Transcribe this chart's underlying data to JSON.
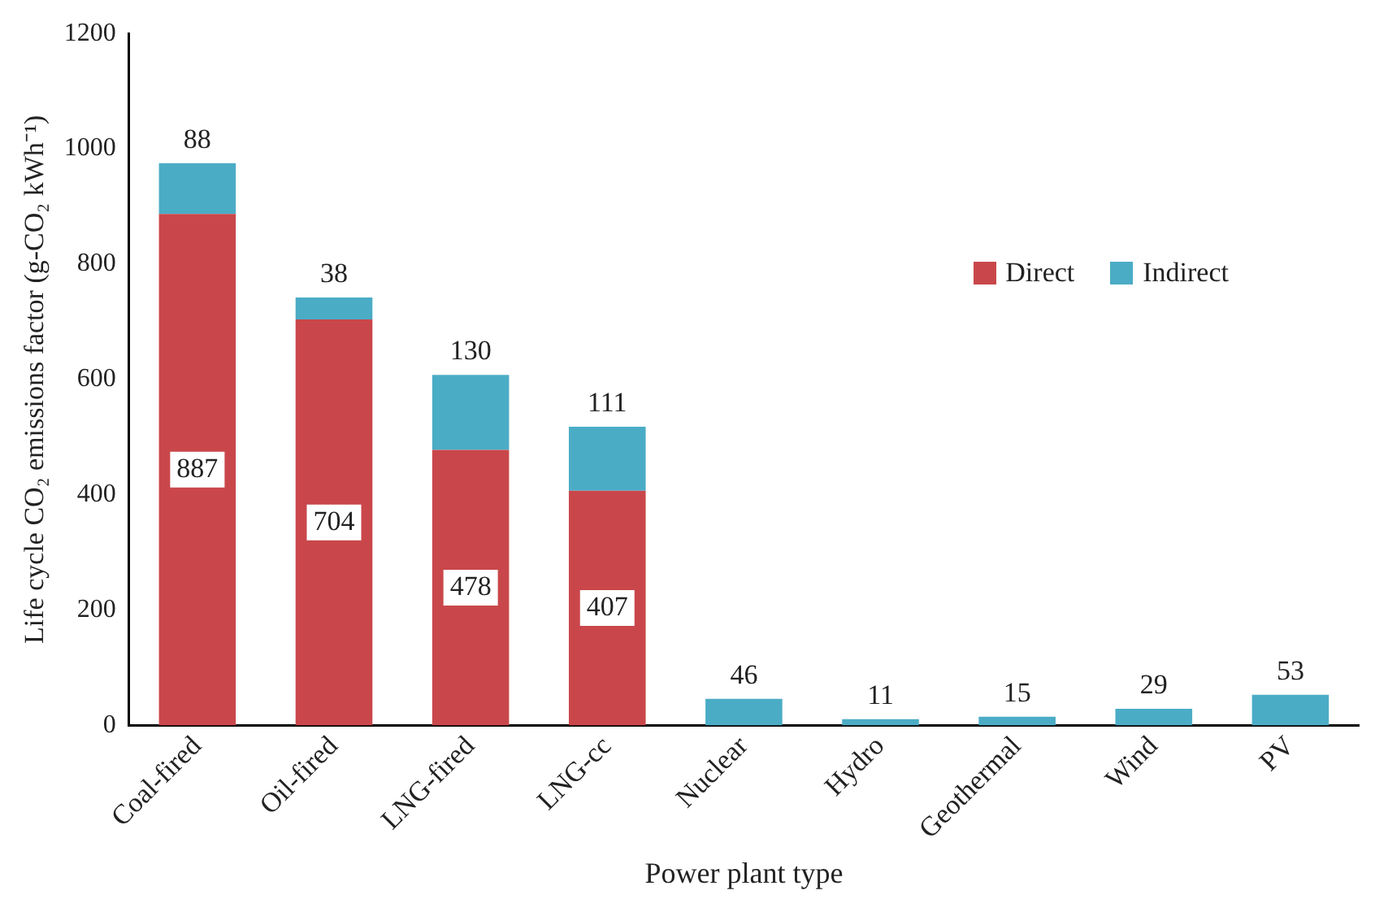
{
  "chart_data": {
    "type": "bar",
    "stacked": true,
    "xlabel": "Power plant type",
    "ylabel": "Life cycle CO₂ emissions factor (g-CO₂ kWh⁻¹)",
    "categories": [
      "Coal-fired",
      "Oil-fired",
      "LNG-fired",
      "LNG-cc",
      "Nuclear",
      "Hydro",
      "Geothermal",
      "Wind",
      "PV"
    ],
    "series": [
      {
        "name": "Direct",
        "color": "#c9474a",
        "values": [
          887,
          704,
          478,
          407,
          null,
          null,
          null,
          null,
          null
        ]
      },
      {
        "name": "Indirect",
        "color": "#4bacc6",
        "values": [
          88,
          38,
          130,
          111,
          46,
          11,
          15,
          29,
          53
        ]
      }
    ],
    "ylim": [
      0,
      1200
    ],
    "yticks": [
      0,
      200,
      400,
      600,
      800,
      1000,
      1200
    ],
    "grid": false,
    "legend": "top right",
    "data_labels": true
  }
}
